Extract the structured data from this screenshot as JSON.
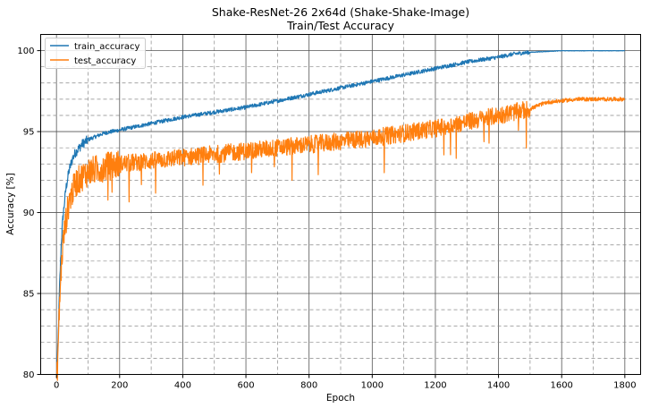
{
  "chart_data": {
    "type": "line",
    "title": "Shake-ResNet-26 2x64d (Shake-Shake-Image)",
    "subtitle": "Train/Test Accuracy",
    "xlabel": "Epoch",
    "ylabel": "Accuracy [%]",
    "xlim": [
      -50,
      1850
    ],
    "ylim": [
      80,
      101
    ],
    "xticks": [
      0,
      200,
      400,
      600,
      800,
      1000,
      1200,
      1400,
      1600,
      1800
    ],
    "yticks": [
      80,
      85,
      90,
      95,
      100
    ],
    "grid": true,
    "legend_position": "top-left",
    "series": [
      {
        "name": "train_accuracy",
        "color": "#1f77b4",
        "x": [
          1,
          5,
          10,
          15,
          20,
          30,
          40,
          50,
          60,
          80,
          100,
          150,
          200,
          300,
          400,
          500,
          600,
          700,
          800,
          900,
          1000,
          1100,
          1200,
          1300,
          1400,
          1450,
          1500,
          1550,
          1600,
          1650,
          1700,
          1800
        ],
        "values": [
          79.9,
          82.0,
          85.5,
          88.0,
          89.6,
          91.5,
          92.6,
          93.3,
          93.7,
          94.2,
          94.5,
          94.9,
          95.1,
          95.5,
          95.9,
          96.2,
          96.5,
          96.9,
          97.3,
          97.7,
          98.1,
          98.5,
          98.9,
          99.3,
          99.6,
          99.8,
          99.9,
          99.95,
          100.0,
          100.0,
          100.0,
          100.0
        ]
      },
      {
        "name": "test_accuracy",
        "color": "#ff7f0e",
        "x": [
          1,
          5,
          10,
          15,
          20,
          30,
          40,
          60,
          80,
          100,
          150,
          200,
          300,
          400,
          500,
          600,
          700,
          800,
          900,
          1000,
          1100,
          1200,
          1300,
          1400,
          1500,
          1550,
          1600,
          1650,
          1700,
          1750,
          1800
        ],
        "values": [
          79.5,
          81.5,
          84.5,
          86.5,
          88.0,
          89.5,
          90.7,
          91.8,
          92.2,
          92.5,
          92.8,
          93.0,
          93.2,
          93.4,
          93.6,
          93.8,
          94.0,
          94.2,
          94.4,
          94.6,
          94.9,
          95.2,
          95.6,
          96.0,
          96.4,
          96.8,
          96.9,
          97.0,
          97.0,
          97.0,
          97.0
        ]
      }
    ]
  }
}
